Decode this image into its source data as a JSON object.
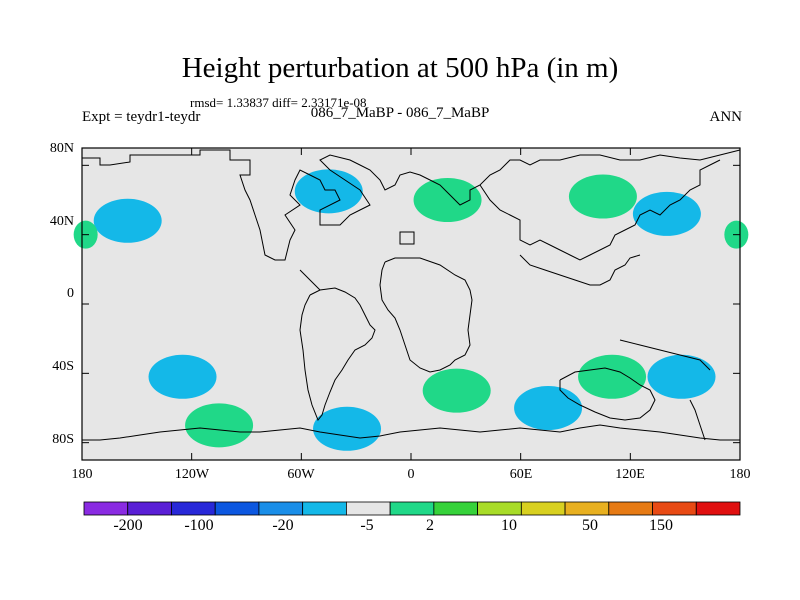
{
  "title": "Height perturbation at 500 hPa (in m)",
  "stats": "rmsd= 1.33837  diff= 2.33171e-08",
  "left_label": "Expt = teydr1-teydr",
  "center_label": "086_7_MaBP - 086_7_MaBP",
  "right_label": "ANN",
  "lat_ticks": [
    "80N",
    "40N",
    "0",
    "40S",
    "80S"
  ],
  "lon_ticks": [
    "180",
    "120W",
    "60W",
    "0",
    "60E",
    "120E",
    "180"
  ],
  "colorbar": {
    "colors": [
      "#8a2be2",
      "#5a1fd6",
      "#2828d8",
      "#0c57e0",
      "#1a8ee8",
      "#14b8e8",
      "#e6e6e6",
      "#20d888",
      "#36d23a",
      "#a8dc28",
      "#d8d020",
      "#e8b020",
      "#e67a14",
      "#e84a14",
      "#e01010"
    ],
    "labels": [
      "-200",
      "-100",
      "-20",
      "-5",
      "2",
      "10",
      "50",
      "150"
    ]
  },
  "colors": {
    "ocean": "#e6e6e6",
    "positive": "#20d888",
    "negative": "#14b8e8",
    "coast": "#000000"
  },
  "chart_data": {
    "type": "heatmap",
    "title": "Height perturbation at 500 hPa (in m)",
    "x_range": [
      -180,
      180
    ],
    "y_range": [
      -90,
      90
    ],
    "contour_levels": [
      -200,
      -150,
      -100,
      -50,
      -20,
      -10,
      -5,
      -2,
      2,
      5,
      10,
      20,
      50,
      100,
      150,
      200
    ],
    "anomaly_centers": [
      {
        "lon": -155,
        "lat": 48,
        "value": -3
      },
      {
        "lon": -45,
        "lat": 65,
        "value": -3
      },
      {
        "lon": 20,
        "lat": 60,
        "value": 3
      },
      {
        "lon": 105,
        "lat": 62,
        "value": 3
      },
      {
        "lon": 140,
        "lat": 52,
        "value": -3
      },
      {
        "lon": -178,
        "lat": 40,
        "value": 2
      },
      {
        "lon": 178,
        "lat": 40,
        "value": 2
      },
      {
        "lon": -125,
        "lat": -42,
        "value": -3
      },
      {
        "lon": 25,
        "lat": -50,
        "value": 3
      },
      {
        "lon": 110,
        "lat": -42,
        "value": 3
      },
      {
        "lon": 148,
        "lat": -42,
        "value": -3
      },
      {
        "lon": -105,
        "lat": -70,
        "value": 3
      },
      {
        "lon": -35,
        "lat": -72,
        "value": -3
      },
      {
        "lon": 75,
        "lat": -60,
        "value": -3
      }
    ]
  }
}
